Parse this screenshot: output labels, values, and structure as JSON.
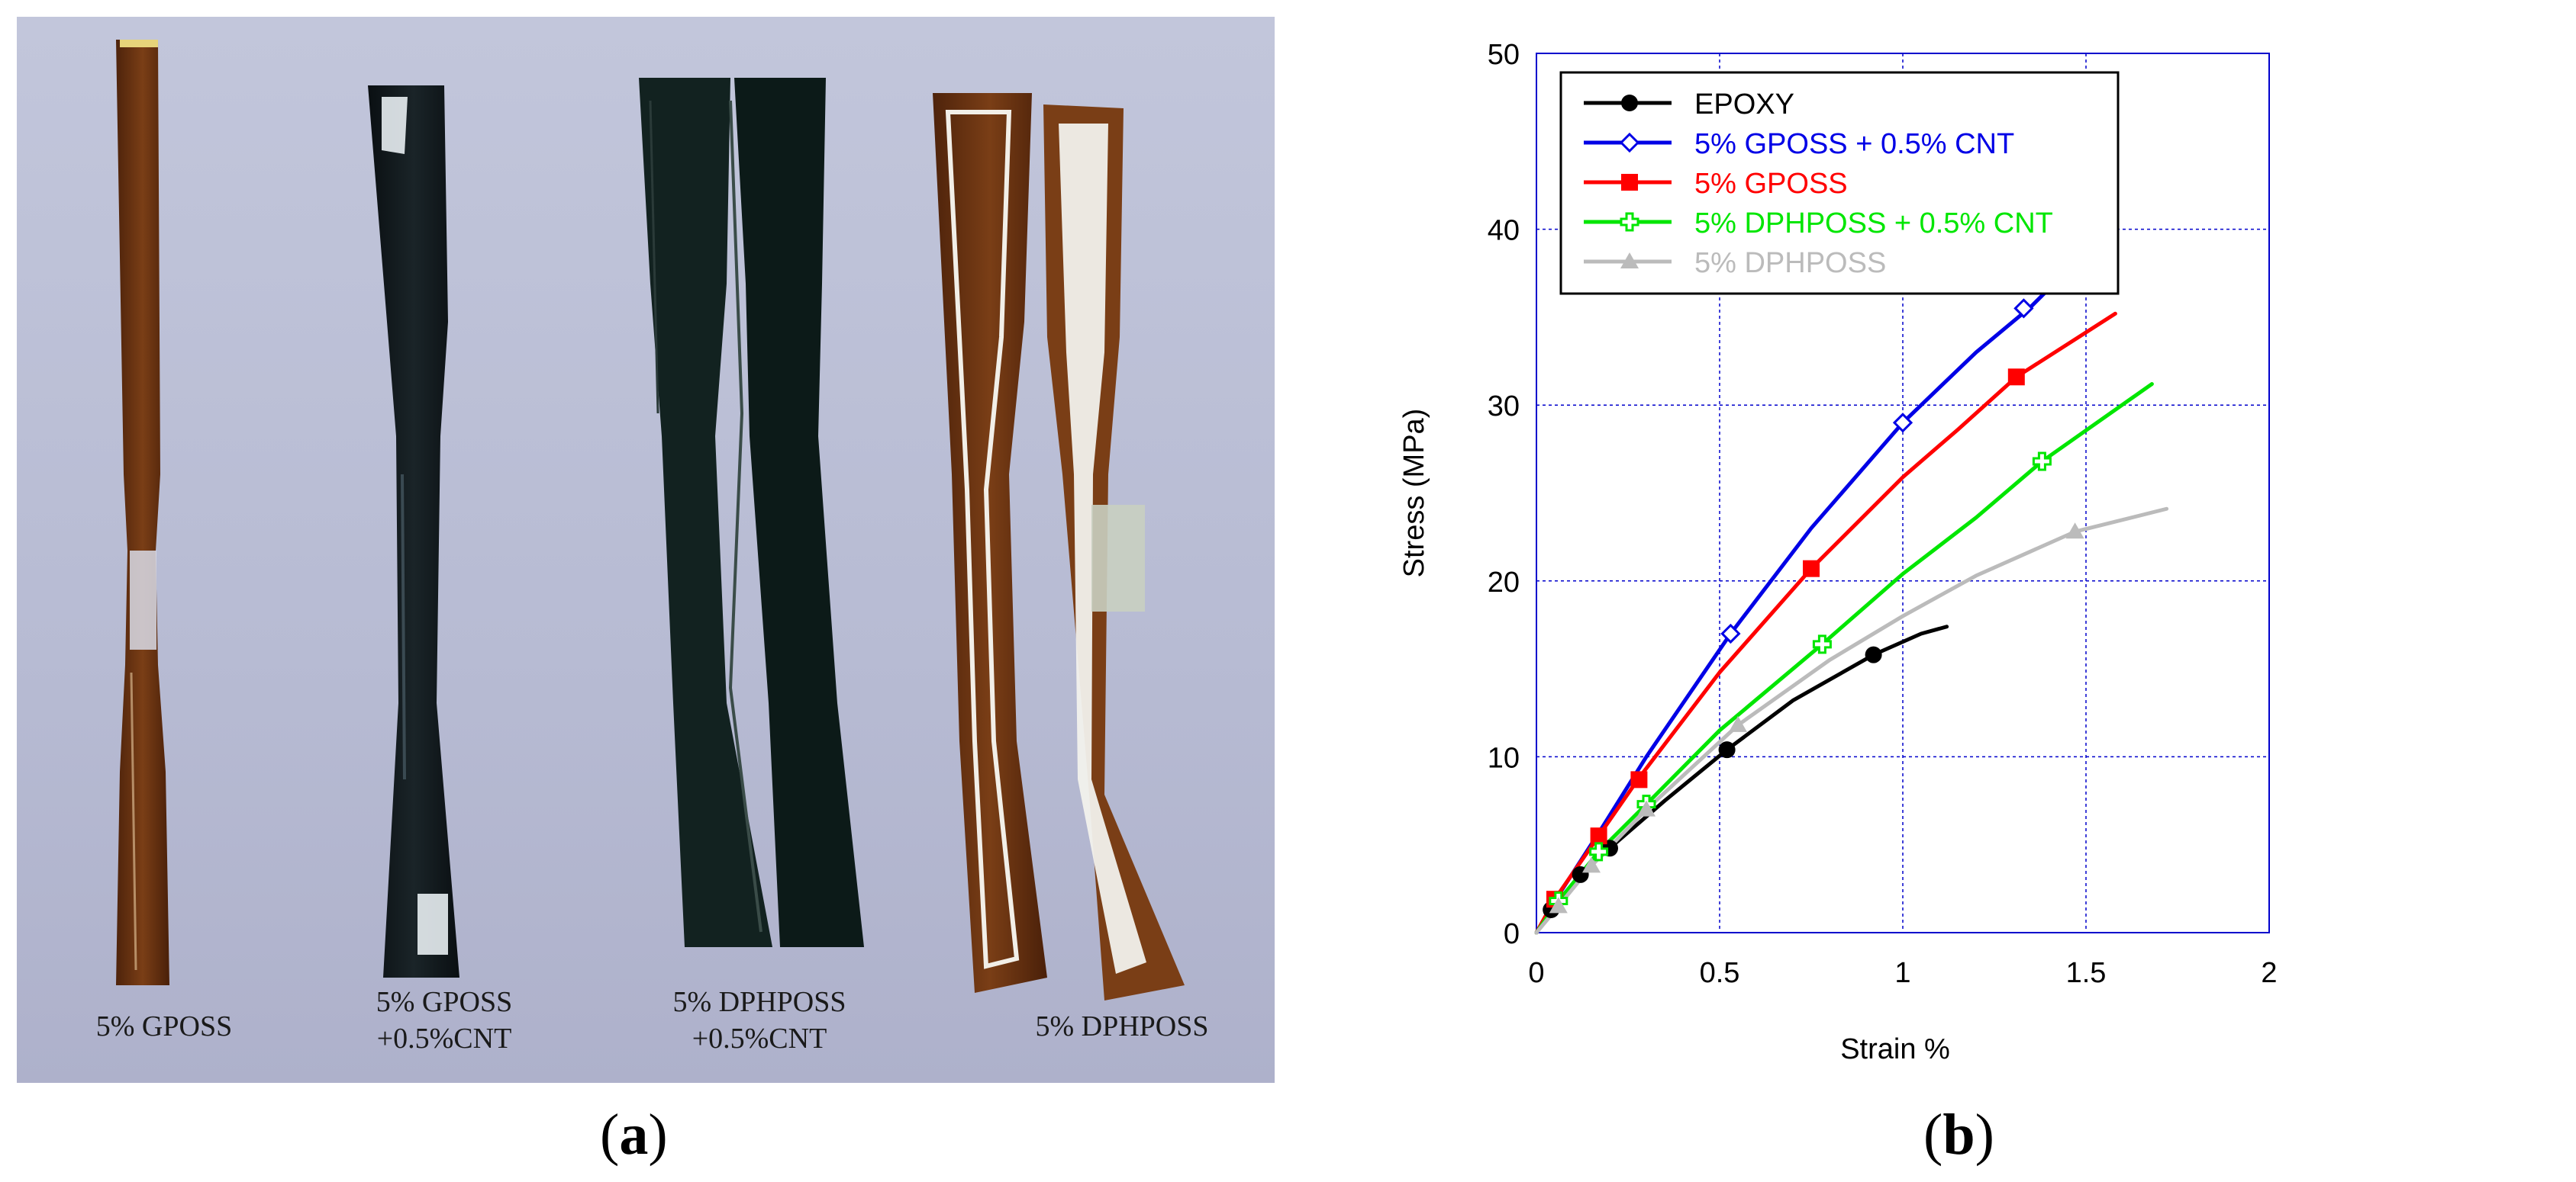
{
  "panels": {
    "a_label_open": "(",
    "a_label_letter": "a",
    "a_label_close": ")",
    "b_label_open": "(",
    "b_label_letter": "b",
    "b_label_close": ")"
  },
  "photo": {
    "captions": [
      {
        "line1": "5% GPOSS",
        "line2": ""
      },
      {
        "line1": "5% GPOSS",
        "line2": "+0.5%CNT"
      },
      {
        "line1": "5% DPHPOSS",
        "line2": "+0.5%CNT"
      },
      {
        "line1": "5% DPHPOSS",
        "line2": ""
      }
    ],
    "colors": {
      "background": "#b9bdd6",
      "specimen_brown": "#6b3412",
      "specimen_black": "#131a1d",
      "specimen_dark_green": "#0f1d1b"
    }
  },
  "chart_data": {
    "type": "line",
    "xlabel": "Strain %",
    "ylabel": "Stress (MPa)",
    "xlim": [
      0,
      2
    ],
    "ylim": [
      0,
      50
    ],
    "xticks": [
      "0",
      "0.5",
      "1",
      "1.5",
      "2"
    ],
    "yticks": [
      "0",
      "10",
      "20",
      "30",
      "40",
      "50"
    ],
    "grid": true,
    "legend_position": "top-left",
    "series": [
      {
        "name": "EPOXY",
        "color": "#000000",
        "marker": "filled-circle",
        "x": [
          0,
          0.04,
          0.12,
          0.2,
          0.35,
          0.52,
          0.7,
          0.92,
          1.05,
          1.12
        ],
        "y": [
          0,
          1.3,
          3.3,
          4.8,
          7.5,
          10.4,
          13.2,
          15.8,
          17.0,
          17.4
        ],
        "markers": [
          [
            0.04,
            1.3
          ],
          [
            0.12,
            3.3
          ],
          [
            0.2,
            4.8
          ],
          [
            0.52,
            10.4
          ],
          [
            0.92,
            15.8
          ]
        ]
      },
      {
        "name": "5% GPOSS + 0.5% CNT",
        "color": "#0000e6",
        "marker": "open-diamond",
        "x": [
          0,
          0.05,
          0.18,
          0.3,
          0.53,
          0.75,
          1.0,
          1.2,
          1.35,
          1.48
        ],
        "y": [
          0,
          1.8,
          6.0,
          10.0,
          17.0,
          23.0,
          29.0,
          33.0,
          35.6,
          38.3
        ],
        "markers": [
          [
            0.53,
            17.0
          ],
          [
            1.0,
            29.0
          ],
          [
            1.33,
            35.5
          ]
        ]
      },
      {
        "name": "5% GPOSS",
        "color": "#ff0000",
        "marker": "filled-square",
        "x": [
          0,
          0.05,
          0.17,
          0.28,
          0.5,
          0.75,
          1.0,
          1.15,
          1.31,
          1.58
        ],
        "y": [
          0,
          1.9,
          5.5,
          8.8,
          14.8,
          20.7,
          25.9,
          28.6,
          31.6,
          35.2
        ],
        "markers": [
          [
            0.05,
            1.9
          ],
          [
            0.17,
            5.5
          ],
          [
            0.28,
            8.7
          ],
          [
            0.75,
            20.7
          ],
          [
            1.31,
            31.6
          ]
        ]
      },
      {
        "name": "5% DPHPOSS + 0.5% CNT",
        "color": "#00e600",
        "marker": "open-cross",
        "x": [
          0,
          0.06,
          0.17,
          0.3,
          0.5,
          0.78,
          1.0,
          1.2,
          1.38,
          1.68
        ],
        "y": [
          0,
          1.8,
          4.6,
          7.3,
          11.5,
          16.4,
          20.4,
          23.6,
          26.8,
          31.2
        ],
        "markers": [
          [
            0.06,
            1.8
          ],
          [
            0.17,
            4.6
          ],
          [
            0.3,
            7.3
          ],
          [
            0.78,
            16.4
          ],
          [
            1.38,
            26.8
          ]
        ]
      },
      {
        "name": "5% DPHPOSS",
        "color": "#bbbbbb",
        "marker": "filled-triangle",
        "x": [
          0,
          0.06,
          0.15,
          0.3,
          0.55,
          0.8,
          1.0,
          1.2,
          1.47,
          1.72
        ],
        "y": [
          0,
          1.5,
          3.8,
          7.0,
          11.8,
          15.5,
          18.0,
          20.3,
          22.8,
          24.1
        ],
        "markers": [
          [
            0.06,
            1.5
          ],
          [
            0.15,
            3.8
          ],
          [
            0.3,
            7.0
          ],
          [
            0.55,
            11.8
          ],
          [
            1.47,
            22.8
          ]
        ]
      }
    ]
  }
}
